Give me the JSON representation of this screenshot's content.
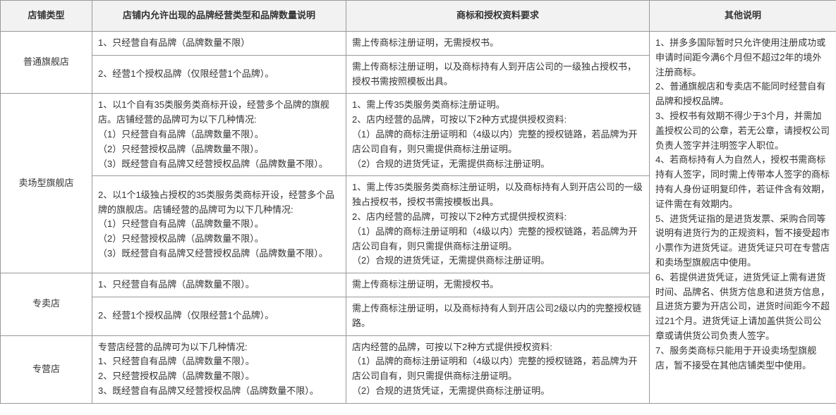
{
  "headers": {
    "col1": "店铺类型",
    "col2": "店铺内允许出现的品牌经营类型和品牌数量说明",
    "col3": "商标和授权资料要求",
    "col4": "其他说明"
  },
  "rows": [
    {
      "type": "普通旗舰店",
      "type_rowspan": 2,
      "brand": "1、只经营自有品牌（品牌数量不限）",
      "mark": "需上传商标注册证明，无需授权书。"
    },
    {
      "brand": "2、经营1个授权品牌（仅限经营1个品牌）。",
      "mark": "需上传商标注册证明，以及商标持有人到开店公司的一级独占授权书，授权书需按照模板出具。"
    },
    {
      "type": "卖场型旗舰店",
      "type_rowspan": 2,
      "brand": "1、以1个自有35类服务类商标开设，经营多个品牌的旗舰店。店铺经营的品牌可为以下几种情况:\n（1）只经营自有品牌（品牌数量不限）。\n（2）只经营授权品牌（品牌数量不限）。\n（3）既经营自有品牌又经营授权品牌（品牌数量不限）。",
      "mark": "1、需上传35类服务类商标注册证明。\n2、店内经营的品牌，可按以下2种方式提供授权资料:\n（1）品牌的商标注册证明和（4级以内）完整的授权链路，若品牌为开店公司自有，则只需提供商标注册证明。\n（2）合规的进货凭证，无需提供商标注册证明。"
    },
    {
      "brand": "2、以1个1级独占授权的35类服务类商标开设，经营多个品牌的旗舰店。店铺经营的品牌可为以下几种情况:\n（1）只经营自有品牌（品牌数量不限）。\n（2）只经营授权品牌（品牌数量不限）。\n（3）既经营自有品牌又经营授权品牌（品牌数量不限）。",
      "mark": "1、需上传35类服务类商标注册证明，以及商标持有人到开店公司的一级独占授权书，授权书需按模板出具。\n2、店内经营的品牌，可按以下2种方式提供授权资料:\n（1）品牌的商标注册证明和（4级以内）完整的授权链路，若品牌为开店公司自有，则只需提供商标注册证明。\n（2）合规的进货凭证，无需提供商标注册证明。"
    },
    {
      "type": "专卖店",
      "type_rowspan": 2,
      "brand": "1、只经营自有品牌（品牌数量不限）。",
      "mark": "需上传商标注册证明，无需授权书。"
    },
    {
      "brand": "2、经营1个授权品牌（仅限经营1个品牌）。",
      "mark": "需上传商标注册证明，以及商标持有人到开店公司2级以内的完整授权链路。"
    },
    {
      "type": "专营店",
      "type_rowspan": 1,
      "brand": "专营店经营的品牌可为以下几种情况:\n1、只经营自有品牌（品牌数量不限）。\n2、只经营授权品牌（品牌数量不限）。\n3、既经营自有品牌又经营授权品牌（品牌数量不限）。",
      "mark": "店内经营的品牌，可按以下2种方式提供授权资料:\n（1）品牌的商标注册证明和（4级以内）完整的授权链路，若品牌为开店公司自有，则只需提供商标注册证明。\n（2）合规的进货凭证，无需提供商标注册证明。"
    }
  ],
  "other": "1、拼多多国际暂时只允许使用注册成功或申请时间距今满6个月但不超过2年的境外注册商标。\n2、普通旗舰店和专卖店不能同时经营自有品牌和授权品牌。\n3、授权书有效期不得少于3个月，并需加盖授权公司的公章，若无公章，请授权公司负责人签字并注明签字人职位。\n4、若商标持有人为自然人，授权书需商标持有人签字，同时需上传带本人签字的商标持有人身份证明复印件，若证件含有效期，证件需在有效期内。\n5、进货凭证指的是进货发票、采购合同等说明有进货行为的正规资料，暂不接受超市小票作为进货凭证。进货凭证只可在专营店和卖场型旗舰店中使用。\n6、若提供进货凭证，进货凭证上需有进货时间、品牌名、供货方信息和进货方信息，且进货方要为开店公司，进货时间距今不超过21个月。进货凭证上请加盖供货公司公章或请供货公司负责人签字。\n7、服务类商标只能用于开设卖场型旗舰店，暂不接受在其他店铺类型中使用。",
  "style": {
    "border_color": "#999999",
    "header_bg": "#f2f2f2",
    "text_color": "#333333",
    "font_size": 13
  }
}
